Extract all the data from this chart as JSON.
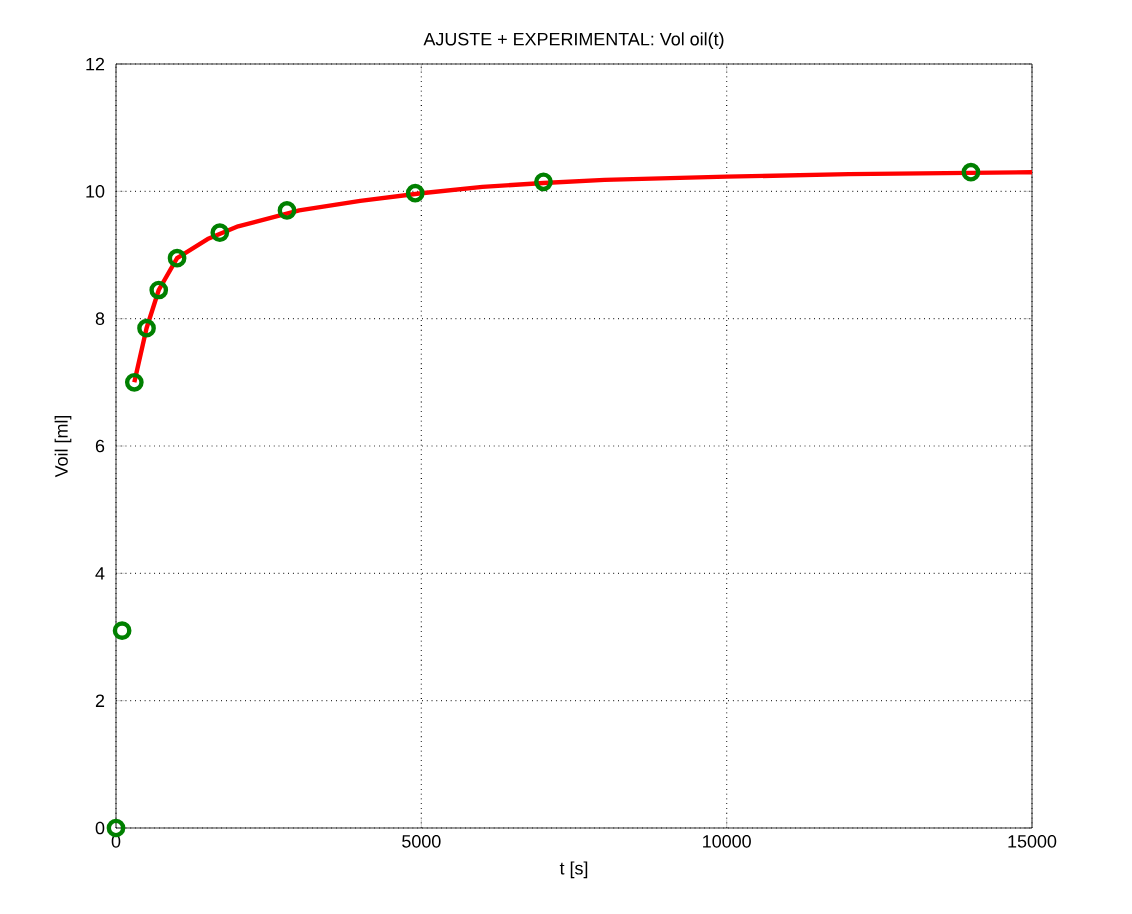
{
  "chart_data": {
    "type": "line",
    "title": "AJUSTE + EXPERIMENTAL:   Vol oil(t)",
    "xlabel": "t [s]",
    "ylabel": "Voil [ml]",
    "xlim": [
      0,
      15000
    ],
    "ylim": [
      0,
      12
    ],
    "xticks": [
      0,
      5000,
      10000,
      15000
    ],
    "yticks": [
      0,
      2,
      4,
      6,
      8,
      10,
      12
    ],
    "grid": true,
    "series": [
      {
        "color": "#ff0000",
        "marker": "none",
        "line_style": "solid",
        "x": [
          300,
          500,
          700,
          1000,
          1500,
          2000,
          3000,
          4000,
          5000,
          6000,
          7000,
          8000,
          10000,
          12000,
          15000
        ],
        "values": [
          7.0,
          7.85,
          8.45,
          8.95,
          9.25,
          9.45,
          9.7,
          9.85,
          9.97,
          10.07,
          10.13,
          10.18,
          10.23,
          10.27,
          10.3
        ]
      },
      {
        "type": "scatter",
        "color": "#008000",
        "marker": "circle",
        "x": [
          0,
          100,
          300,
          500,
          700,
          1000,
          1700,
          2800,
          4900,
          7000,
          14000
        ],
        "values": [
          0,
          3.1,
          7.0,
          7.85,
          8.45,
          8.95,
          9.35,
          9.7,
          9.97,
          10.15,
          10.3
        ]
      }
    ]
  }
}
